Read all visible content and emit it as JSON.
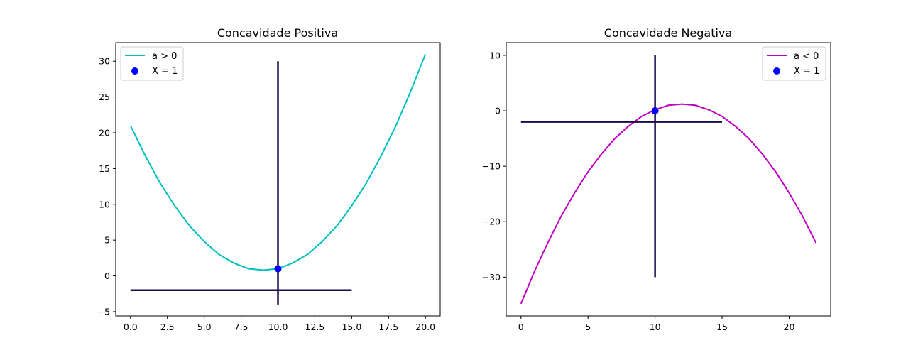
{
  "chart_data": [
    {
      "type": "line",
      "title": "Concavidade Positiva",
      "xlabel": "",
      "ylabel": "",
      "xlim": [
        -1.0,
        21.0
      ],
      "ylim": [
        -5.6,
        32.6
      ],
      "xticks": [
        0,
        2.5,
        5,
        7.5,
        10,
        12.5,
        15,
        17.5,
        20
      ],
      "xtick_labels": [
        "0.0",
        "2.5",
        "5.0",
        "7.5",
        "10.0",
        "12.5",
        "15.0",
        "17.5",
        "20.0"
      ],
      "yticks": [
        -5,
        0,
        5,
        10,
        15,
        20,
        25,
        30
      ],
      "ytick_labels": [
        "−5",
        "0",
        "5",
        "10",
        "15",
        "20",
        "25",
        "30"
      ],
      "grid": false,
      "legend_position": "upper-left",
      "series": [
        {
          "name": "a > 0",
          "color": "#00bfbf",
          "x": [
            0,
            1,
            2,
            3,
            4,
            5,
            6,
            7,
            8,
            9,
            10,
            11,
            12,
            13,
            14,
            15,
            16,
            17,
            18,
            19,
            20
          ],
          "y": [
            21,
            16.8,
            13,
            9.8,
            7,
            4.8,
            3,
            1.8,
            1,
            0.8,
            1,
            1.8,
            3,
            4.8,
            7,
            9.8,
            13,
            16.8,
            21,
            25.8,
            31
          ]
        }
      ],
      "points": [
        {
          "name": "X = 1",
          "color": "#0000ff",
          "x": [
            10
          ],
          "y": [
            1
          ]
        }
      ],
      "segments": [
        {
          "color": "#1a0a4a",
          "x": [
            0,
            15
          ],
          "y": [
            -2,
            -2
          ]
        },
        {
          "color": "#1a0a4a",
          "x": [
            10,
            10
          ],
          "y": [
            -4,
            30
          ]
        }
      ],
      "legend": [
        {
          "label": "a > 0",
          "kind": "line",
          "color": "#00bfbf"
        },
        {
          "label": "X = 1",
          "kind": "marker",
          "color": "#0000ff"
        }
      ]
    },
    {
      "type": "line",
      "title": "Concavidade Negativa",
      "xlabel": "",
      "ylabel": "",
      "xlim": [
        -1.1,
        23.1
      ],
      "ylim": [
        -37.0,
        12.3
      ],
      "xticks": [
        0,
        5,
        10,
        15,
        20
      ],
      "xtick_labels": [
        "0",
        "5",
        "10",
        "15",
        "20"
      ],
      "yticks": [
        -30,
        -20,
        -10,
        0,
        10
      ],
      "ytick_labels": [
        "−30",
        "−20",
        "−10",
        "0",
        "10"
      ],
      "grid": false,
      "legend_position": "upper-right",
      "series": [
        {
          "name": "a < 0",
          "color": "#bf00bf",
          "x": [
            0,
            1,
            2,
            3,
            4,
            5,
            6,
            7,
            8,
            9,
            10,
            11,
            12,
            13,
            14,
            15,
            16,
            17,
            18,
            19,
            20,
            21,
            22
          ],
          "y": [
            -34.8,
            -29,
            -23.8,
            -19,
            -14.8,
            -11,
            -7.8,
            -5,
            -2.8,
            -1,
            0.2,
            1,
            1.2,
            1,
            0.2,
            -1,
            -2.8,
            -5,
            -7.8,
            -11,
            -14.8,
            -19,
            -23.8
          ]
        }
      ],
      "points": [
        {
          "name": "X = 1",
          "color": "#0000ff",
          "x": [
            10
          ],
          "y": [
            0
          ]
        }
      ],
      "segments": [
        {
          "color": "#1a0a4a",
          "x": [
            0,
            15
          ],
          "y": [
            -2,
            -2
          ]
        },
        {
          "color": "#1a0a4a",
          "x": [
            10,
            10
          ],
          "y": [
            -30,
            10
          ]
        }
      ],
      "legend": [
        {
          "label": "a < 0",
          "kind": "line",
          "color": "#bf00bf"
        },
        {
          "label": "X = 1",
          "kind": "marker",
          "color": "#0000ff"
        }
      ]
    }
  ]
}
